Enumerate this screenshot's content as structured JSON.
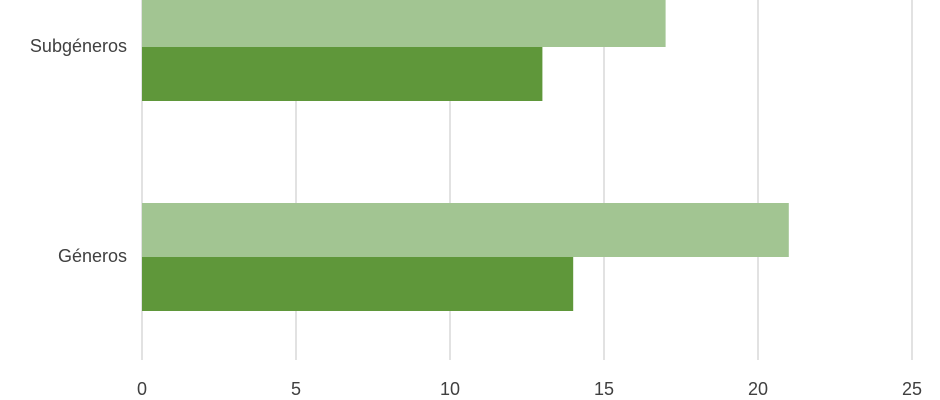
{
  "chart_data": {
    "type": "hbar",
    "categories": [
      "Subgéneros",
      "Géneros"
    ],
    "series": [
      {
        "color": "#a2c592",
        "values": [
          17,
          21
        ]
      },
      {
        "color": "#5f973a",
        "values": [
          13,
          14
        ]
      }
    ],
    "xlim": [
      0,
      25
    ],
    "xticks": [
      0,
      5,
      10,
      15,
      20,
      25
    ],
    "grid": true
  }
}
